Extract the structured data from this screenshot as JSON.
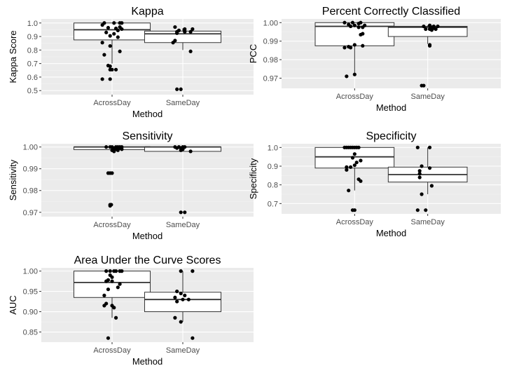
{
  "figure": {
    "panel_background": "#ebebeb",
    "grid_major_color": "#ffffff",
    "grid_minor_color": "#f4f4f4",
    "box_fill": "#ffffff",
    "box_stroke": "#333333",
    "point_color": "#000000",
    "text_color": "#000000",
    "tick_label_color": "#4d4d4d"
  },
  "chart_data": [
    {
      "id": "kappa",
      "type": "boxplot",
      "title": "Kappa",
      "xlabel": "Method",
      "ylabel": "Kappa Score",
      "categories": [
        "AcrossDay",
        "SameDay"
      ],
      "ylim": [
        0.47,
        1.03
      ],
      "yticks": [
        0.5,
        0.6,
        0.7,
        0.8,
        0.9,
        1.0
      ],
      "ytick_labels": [
        "0.5",
        "0.6",
        "0.7",
        "0.8",
        "0.9",
        "1.0"
      ],
      "boxes": [
        {
          "q1": 0.875,
          "median": 0.95,
          "q3": 1.0,
          "whisker_low": 0.7,
          "whisker_high": 1.0
        },
        {
          "q1": 0.855,
          "median": 0.92,
          "q3": 0.94,
          "whisker_low": 0.8,
          "whisker_high": 0.96
        }
      ],
      "points": [
        [
          [
            -0.2,
            1.0
          ],
          [
            0.05,
            1.0
          ],
          [
            0.2,
            1.0
          ],
          [
            0.25,
            1.0
          ],
          [
            -0.25,
            0.985
          ],
          [
            0.2,
            0.97
          ],
          [
            -0.1,
            0.965
          ],
          [
            0.1,
            0.96
          ],
          [
            0.25,
            0.955
          ],
          [
            0.15,
            0.945
          ],
          [
            -0.15,
            0.93
          ],
          [
            0.05,
            0.92
          ],
          [
            -0.05,
            0.905
          ],
          [
            0.15,
            0.895
          ],
          [
            -0.25,
            0.855
          ],
          [
            -0.05,
            0.83
          ],
          [
            0.2,
            0.79
          ],
          [
            -0.2,
            0.765
          ],
          [
            -0.1,
            0.685
          ],
          [
            -0.05,
            0.68
          ],
          [
            0.0,
            0.655
          ],
          [
            -0.05,
            0.655
          ],
          [
            0.1,
            0.655
          ],
          [
            -0.25,
            0.585
          ],
          [
            -0.05,
            0.585
          ]
        ],
        [
          [
            -0.2,
            0.97
          ],
          [
            0.05,
            0.955
          ],
          [
            0.25,
            0.955
          ],
          [
            -0.1,
            0.945
          ],
          [
            0.05,
            0.94
          ],
          [
            -0.15,
            0.935
          ],
          [
            0.2,
            0.935
          ],
          [
            0.05,
            0.935
          ],
          [
            -0.15,
            0.925
          ],
          [
            -0.2,
            0.87
          ],
          [
            -0.25,
            0.855
          ],
          [
            0.2,
            0.79
          ],
          [
            -0.15,
            0.51
          ],
          [
            -0.05,
            0.51
          ]
        ]
      ]
    },
    {
      "id": "pcc",
      "type": "boxplot",
      "title": "Percent Correctly Classified",
      "xlabel": "Method",
      "ylabel": "PCC",
      "categories": [
        "AcrossDay",
        "SameDay"
      ],
      "ylim": [
        0.9645,
        1.002
      ],
      "yticks": [
        0.97,
        0.98,
        0.99,
        1.0
      ],
      "ytick_labels": [
        "0.97",
        "0.98",
        "0.99",
        "1.00"
      ],
      "boxes": [
        {
          "q1": 0.9875,
          "median": 0.998,
          "q3": 1.0,
          "whisker_low": 0.9715,
          "whisker_high": 1.0
        },
        {
          "q1": 0.9925,
          "median": 0.9975,
          "q3": 0.998,
          "whisker_low": 0.9885,
          "whisker_high": 0.9985
        }
      ],
      "points": [
        [
          [
            -0.25,
            1.0
          ],
          [
            -0.05,
            1.0
          ],
          [
            0.15,
            1.0
          ],
          [
            0.1,
            0.9995
          ],
          [
            -0.15,
            0.999
          ],
          [
            0.0,
            0.9985
          ],
          [
            0.25,
            0.9985
          ],
          [
            -0.1,
            0.998
          ],
          [
            0.1,
            0.9975
          ],
          [
            0.2,
            0.9975
          ],
          [
            0.2,
            0.994
          ],
          [
            0.15,
            0.9935
          ],
          [
            0.0,
            0.988
          ],
          [
            0.2,
            0.9875
          ],
          [
            -0.15,
            0.987
          ],
          [
            -0.25,
            0.9865
          ],
          [
            -0.1,
            0.9865
          ],
          [
            0.0,
            0.972
          ],
          [
            -0.2,
            0.971
          ]
        ],
        [
          [
            0.05,
            0.9985
          ],
          [
            -0.1,
            0.998
          ],
          [
            0.15,
            0.998
          ],
          [
            0.25,
            0.998
          ],
          [
            0.1,
            0.9975
          ],
          [
            0.15,
            0.997
          ],
          [
            0.05,
            0.9965
          ],
          [
            0.2,
            0.9965
          ],
          [
            -0.05,
            0.9965
          ],
          [
            0.1,
            0.996
          ],
          [
            0.05,
            0.988
          ],
          [
            0.05,
            0.9875
          ],
          [
            -0.15,
            0.966
          ],
          [
            -0.1,
            0.966
          ]
        ]
      ]
    },
    {
      "id": "sensitivity",
      "type": "boxplot",
      "title": "Sensitivity",
      "xlabel": "Method",
      "ylabel": "Sensitivity",
      "categories": [
        "AcrossDay",
        "SameDay"
      ],
      "ylim": [
        0.968,
        1.0015
      ],
      "yticks": [
        0.97,
        0.98,
        0.99,
        1.0
      ],
      "ytick_labels": [
        "0.97",
        "0.98",
        "0.99",
        "1.00"
      ],
      "boxes": [
        {
          "q1": 0.9988,
          "median": 1.0,
          "q3": 1.0,
          "whisker_low": 0.9988,
          "whisker_high": 1.0
        },
        {
          "q1": 0.998,
          "median": 1.0,
          "q3": 1.0,
          "whisker_low": 0.998,
          "whisker_high": 1.0
        }
      ],
      "points": [
        [
          [
            -0.15,
            1.0
          ],
          [
            0.1,
            1.0
          ],
          [
            0.0,
            1.0
          ],
          [
            0.2,
            1.0
          ],
          [
            -0.05,
            1.0
          ],
          [
            0.15,
            1.0
          ],
          [
            0.25,
            1.0
          ],
          [
            0.05,
            0.9995
          ],
          [
            0.2,
            0.9995
          ],
          [
            0.1,
            0.999
          ],
          [
            0.25,
            0.999
          ],
          [
            0.15,
            0.9985
          ],
          [
            0.0,
            0.9985
          ],
          [
            0.05,
            0.998
          ],
          [
            -0.1,
            0.988
          ],
          [
            -0.05,
            0.988
          ],
          [
            0.0,
            0.988
          ],
          [
            -0.05,
            0.9735
          ],
          [
            -0.05,
            0.973
          ],
          [
            -0.02,
            0.9735
          ]
        ],
        [
          [
            -0.2,
            1.0
          ],
          [
            0.0,
            1.0
          ],
          [
            0.05,
            1.0
          ],
          [
            -0.1,
            1.0
          ],
          [
            -0.05,
            0.9995
          ],
          [
            -0.15,
            0.9995
          ],
          [
            0.0,
            0.999
          ],
          [
            -0.05,
            0.9985
          ],
          [
            0.2,
            0.998
          ],
          [
            -0.05,
            0.97
          ],
          [
            0.05,
            0.97
          ]
        ]
      ]
    },
    {
      "id": "specificity",
      "type": "boxplot",
      "title": "Specificity",
      "xlabel": "Method",
      "ylabel": "Specificity",
      "categories": [
        "AcrossDay",
        "SameDay"
      ],
      "ylim": [
        0.645,
        1.02
      ],
      "yticks": [
        0.7,
        0.8,
        0.9,
        1.0
      ],
      "ytick_labels": [
        "0.7",
        "0.8",
        "0.9",
        "1.0"
      ],
      "boxes": [
        {
          "q1": 0.89,
          "median": 0.95,
          "q3": 1.0,
          "whisker_low": 0.77,
          "whisker_high": 1.0
        },
        {
          "q1": 0.815,
          "median": 0.855,
          "q3": 0.895,
          "whisker_low": 0.75,
          "whisker_high": 1.0
        }
      ],
      "points": [
        [
          [
            -0.25,
            1.0
          ],
          [
            -0.15,
            1.0
          ],
          [
            -0.05,
            1.0
          ],
          [
            0.0,
            1.0
          ],
          [
            0.1,
            1.0
          ],
          [
            -0.2,
            1.0
          ],
          [
            0.05,
            1.0
          ],
          [
            -0.1,
            1.0
          ],
          [
            0.0,
            0.965
          ],
          [
            -0.05,
            0.945
          ],
          [
            0.15,
            0.93
          ],
          [
            0.05,
            0.92
          ],
          [
            0.0,
            0.905
          ],
          [
            -0.2,
            0.895
          ],
          [
            -0.1,
            0.895
          ],
          [
            -0.2,
            0.88
          ],
          [
            0.1,
            0.83
          ],
          [
            0.15,
            0.82
          ],
          [
            -0.15,
            0.77
          ],
          [
            0.0,
            0.665
          ],
          [
            -0.05,
            0.665
          ]
        ],
        [
          [
            -0.25,
            1.0
          ],
          [
            0.05,
            1.0
          ],
          [
            -0.15,
            0.9
          ],
          [
            -0.2,
            0.875
          ],
          [
            0.05,
            0.89
          ],
          [
            -0.2,
            0.86
          ],
          [
            -0.2,
            0.84
          ],
          [
            0.1,
            0.795
          ],
          [
            -0.15,
            0.75
          ],
          [
            -0.25,
            0.665
          ],
          [
            -0.05,
            0.665
          ]
        ]
      ]
    },
    {
      "id": "auc",
      "type": "boxplot",
      "title": "Area Under the Curve Scores",
      "xlabel": "Method",
      "ylabel": "AUC",
      "categories": [
        "AcrossDay",
        "SameDay"
      ],
      "ylim": [
        0.825,
        1.008
      ],
      "yticks": [
        0.85,
        0.9,
        0.95,
        1.0
      ],
      "ytick_labels": [
        "0.85",
        "0.90",
        "0.95",
        "1.00"
      ],
      "boxes": [
        {
          "q1": 0.935,
          "median": 0.972,
          "q3": 1.0,
          "whisker_low": 0.885,
          "whisker_high": 1.0
        },
        {
          "q1": 0.9,
          "median": 0.93,
          "q3": 0.948,
          "whisker_low": 0.875,
          "whisker_high": 1.0
        }
      ],
      "points": [
        [
          [
            -0.15,
            1.0
          ],
          [
            -0.05,
            1.0
          ],
          [
            0.05,
            1.0
          ],
          [
            0.1,
            1.0
          ],
          [
            0.2,
            1.0
          ],
          [
            0.25,
            1.0
          ],
          [
            0.0,
            0.985
          ],
          [
            -0.05,
            0.99
          ],
          [
            -0.1,
            0.978
          ],
          [
            0.0,
            0.975
          ],
          [
            -0.15,
            0.975
          ],
          [
            0.2,
            0.968
          ],
          [
            0.15,
            0.96
          ],
          [
            -0.1,
            0.955
          ],
          [
            -0.2,
            0.94
          ],
          [
            -0.15,
            0.92
          ],
          [
            -0.2,
            0.915
          ],
          [
            0.0,
            0.915
          ],
          [
            0.05,
            0.91
          ],
          [
            0.1,
            0.885
          ],
          [
            -0.1,
            0.835
          ]
        ],
        [
          [
            -0.05,
            1.0
          ],
          [
            0.25,
            1.0
          ],
          [
            -0.15,
            0.95
          ],
          [
            -0.05,
            0.945
          ],
          [
            0.05,
            0.94
          ],
          [
            -0.2,
            0.935
          ],
          [
            0.0,
            0.93
          ],
          [
            0.15,
            0.93
          ],
          [
            -0.15,
            0.925
          ],
          [
            -0.2,
            0.885
          ],
          [
            -0.05,
            0.875
          ],
          [
            0.25,
            0.835
          ]
        ]
      ]
    }
  ]
}
